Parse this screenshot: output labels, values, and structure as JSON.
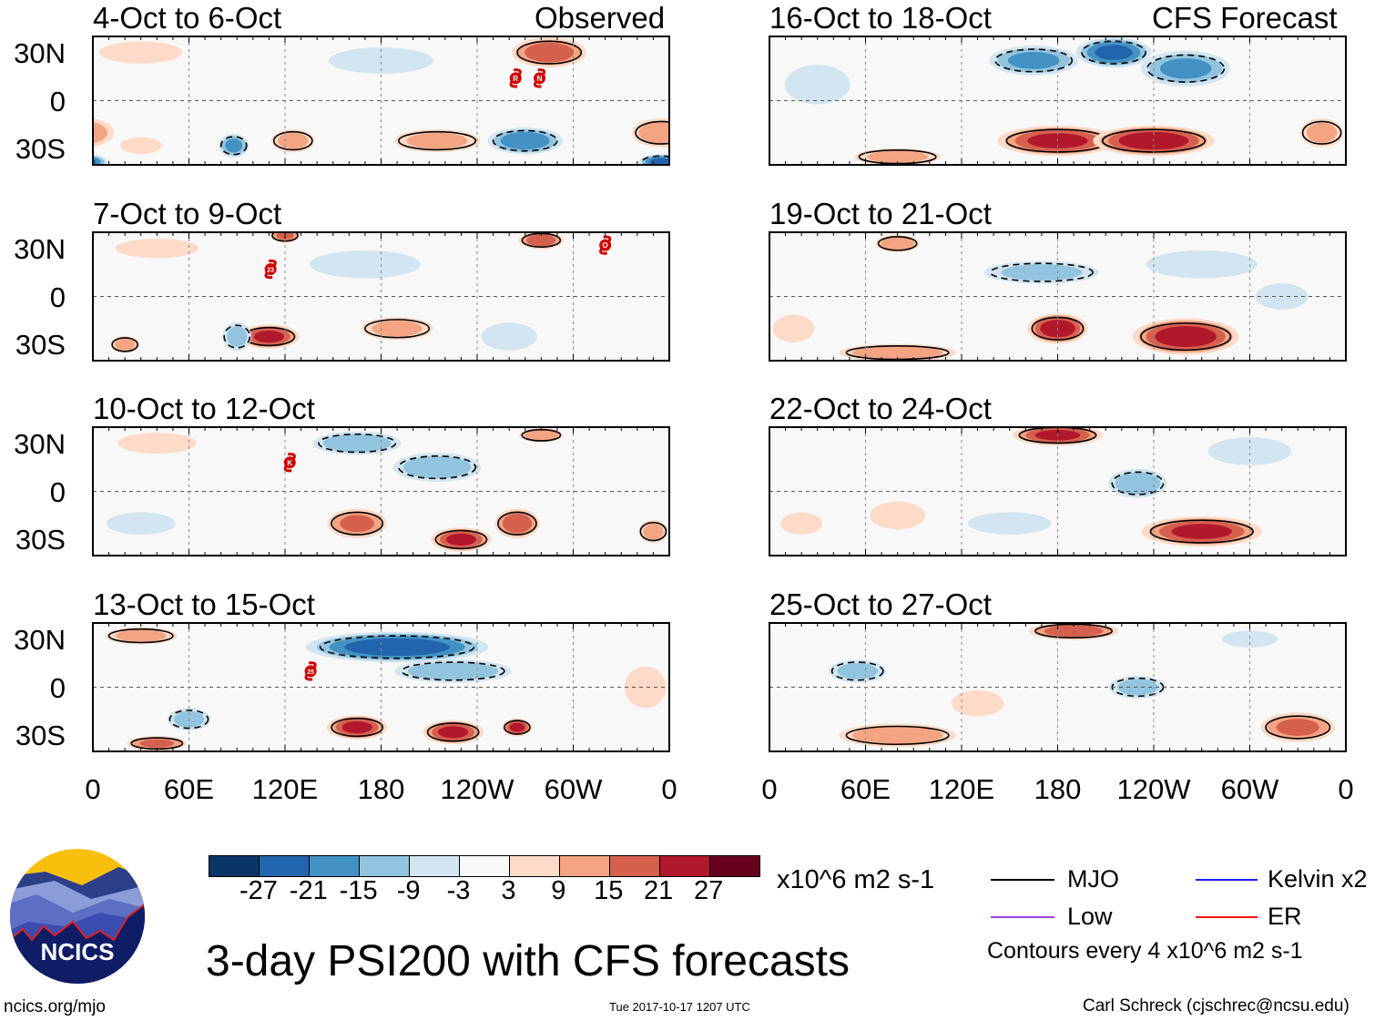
{
  "header": {
    "left_label": "Observed",
    "right_label": "CFS Forecast"
  },
  "lat_labels": [
    "30N",
    "0",
    "30S"
  ],
  "lon_labels": [
    "0",
    "60E",
    "120E",
    "180",
    "120W",
    "60W",
    "0"
  ],
  "colorbar": {
    "labels": [
      "-27",
      "-21",
      "-15",
      "-9",
      "-3",
      "3",
      "9",
      "15",
      "21",
      "27"
    ],
    "colors": [
      "#0b3467",
      "#2265ad",
      "#4492c4",
      "#93c4df",
      "#d2e5f0",
      "#f8f8f8",
      "#fddbc8",
      "#f4a482",
      "#d6604e",
      "#b2182c",
      "#67001f"
    ],
    "units": "x10^6 m2 s-1"
  },
  "legend": {
    "items": [
      {
        "label": "MJO",
        "color": "#000000"
      },
      {
        "label": "Kelvin x2",
        "color": "#1a1aff"
      },
      {
        "label": "Low",
        "color": "#a040e0"
      },
      {
        "label": "ER",
        "color": "#ee1111"
      }
    ],
    "note": "Contours every 4 x10^6 m2 s-1"
  },
  "title": "3-day PSI200 with CFS forecasts",
  "footer": {
    "site": "ncics.org/mjo",
    "timestamp": "Tue 2017-10-17 1207 UTC",
    "author": "Carl Schreck (cjschrec@ncsu.edu)"
  },
  "logo": {
    "text": "NCICS"
  },
  "panels": [
    {
      "title": "4-Oct to 6-Oct",
      "column": "observed",
      "anomalies": [
        [
          285,
          30,
          21,
          25,
          10
        ],
        [
          270,
          -25,
          -21,
          25,
          9
        ],
        [
          215,
          -25,
          12,
          30,
          8
        ],
        [
          125,
          -25,
          12,
          15,
          8
        ],
        [
          88,
          -28,
          -18,
          10,
          8
        ],
        [
          355,
          -20,
          15,
          20,
          10
        ],
        [
          355,
          -38,
          -24,
          15,
          5
        ],
        [
          30,
          -28,
          9,
          15,
          6
        ],
        [
          180,
          25,
          -6,
          40,
          10
        ],
        [
          30,
          30,
          9,
          30,
          8
        ]
      ],
      "storms": [
        {
          "label": "R",
          "lon": 264,
          "lat": 14
        },
        {
          "label": "N",
          "lon": 279,
          "lat": 14
        }
      ]
    },
    {
      "title": "7-Oct to 9-Oct",
      "column": "observed",
      "anomalies": [
        [
          120,
          38,
          18,
          10,
          5
        ],
        [
          280,
          35,
          21,
          15,
          6
        ],
        [
          110,
          -25,
          24,
          20,
          8
        ],
        [
          190,
          -20,
          12,
          25,
          8
        ],
        [
          90,
          -25,
          -12,
          10,
          10
        ],
        [
          20,
          -30,
          12,
          10,
          6
        ],
        [
          170,
          20,
          -9,
          40,
          10
        ],
        [
          260,
          -25,
          -9,
          20,
          10
        ],
        [
          40,
          30,
          9,
          30,
          7
        ]
      ],
      "storms": [
        {
          "label": "23",
          "lon": 111,
          "lat": 17
        },
        {
          "label": "O",
          "lon": 320,
          "lat": 32
        }
      ]
    },
    {
      "title": "10-Oct to 12-Oct",
      "column": "observed",
      "anomalies": [
        [
          165,
          30,
          -15,
          30,
          8
        ],
        [
          215,
          15,
          -15,
          30,
          10
        ],
        [
          165,
          -20,
          18,
          20,
          10
        ],
        [
          230,
          -30,
          24,
          20,
          8
        ],
        [
          265,
          -20,
          21,
          15,
          10
        ],
        [
          30,
          -20,
          -9,
          25,
          8
        ],
        [
          280,
          35,
          15,
          15,
          5
        ],
        [
          40,
          30,
          6,
          30,
          8
        ],
        [
          350,
          -25,
          12,
          10,
          8
        ]
      ],
      "storms": [
        {
          "label": "K",
          "lon": 123,
          "lat": 18
        }
      ]
    },
    {
      "title": "13-Oct to 15-Oct",
      "column": "observed",
      "anomalies": [
        [
          190,
          25,
          -27,
          60,
          10
        ],
        [
          225,
          10,
          -15,
          40,
          8
        ],
        [
          165,
          -25,
          24,
          20,
          8
        ],
        [
          225,
          -28,
          24,
          20,
          8
        ],
        [
          265,
          -25,
          24,
          10,
          6
        ],
        [
          40,
          -35,
          18,
          20,
          5
        ],
        [
          60,
          -20,
          -12,
          15,
          8
        ],
        [
          30,
          32,
          12,
          25,
          6
        ],
        [
          345,
          0,
          9,
          15,
          15
        ]
      ],
      "storms": [
        {
          "label": "25",
          "lon": 136,
          "lat": 10
        }
      ]
    },
    {
      "title": "16-Oct to 18-Oct",
      "column": "forecast",
      "anomalies": [
        [
          165,
          25,
          -18,
          30,
          10
        ],
        [
          215,
          30,
          -24,
          25,
          10
        ],
        [
          260,
          20,
          -18,
          30,
          12
        ],
        [
          180,
          -25,
          24,
          40,
          10
        ],
        [
          240,
          -25,
          27,
          40,
          10
        ],
        [
          80,
          -35,
          12,
          30,
          6
        ],
        [
          345,
          -20,
          12,
          15,
          10
        ],
        [
          30,
          10,
          -6,
          25,
          15
        ]
      ],
      "storms": []
    },
    {
      "title": "19-Oct to 21-Oct",
      "column": "forecast",
      "anomalies": [
        [
          180,
          -20,
          27,
          20,
          10
        ],
        [
          260,
          -25,
          27,
          35,
          12
        ],
        [
          80,
          -35,
          15,
          40,
          6
        ],
        [
          170,
          15,
          -12,
          40,
          8
        ],
        [
          270,
          20,
          -9,
          40,
          10
        ],
        [
          80,
          33,
          15,
          15,
          6
        ],
        [
          320,
          0,
          -6,
          20,
          10
        ],
        [
          15,
          -20,
          9,
          15,
          10
        ]
      ],
      "storms": []
    },
    {
      "title": "22-Oct to 24-Oct",
      "column": "forecast",
      "anomalies": [
        [
          180,
          35,
          24,
          30,
          7
        ],
        [
          230,
          5,
          -15,
          20,
          10
        ],
        [
          270,
          -25,
          24,
          40,
          10
        ],
        [
          150,
          -20,
          -9,
          30,
          8
        ],
        [
          80,
          -15,
          9,
          20,
          10
        ],
        [
          300,
          25,
          -9,
          30,
          10
        ],
        [
          20,
          -20,
          9,
          15,
          8
        ]
      ],
      "storms": []
    },
    {
      "title": "25-Oct to 27-Oct",
      "column": "forecast",
      "anomalies": [
        [
          190,
          35,
          21,
          30,
          6
        ],
        [
          55,
          10,
          -12,
          20,
          8
        ],
        [
          80,
          -30,
          15,
          40,
          8
        ],
        [
          230,
          0,
          -12,
          20,
          8
        ],
        [
          330,
          -25,
          18,
          25,
          10
        ],
        [
          300,
          30,
          -9,
          20,
          6
        ],
        [
          130,
          -10,
          6,
          20,
          10
        ]
      ],
      "storms": []
    }
  ]
}
